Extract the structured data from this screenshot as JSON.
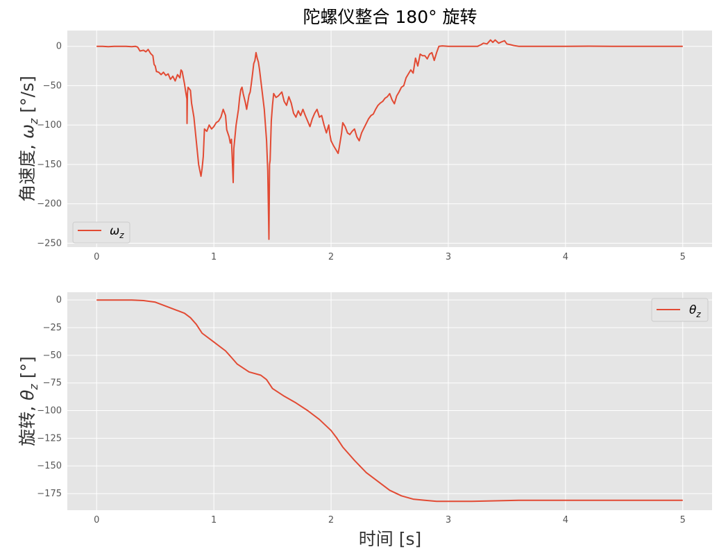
{
  "figure": {
    "title": "陀螺仪整合 180° 旋转"
  },
  "chart_data": [
    {
      "type": "line",
      "ylabel_text": "角速度, ",
      "ylabel_math": "ω",
      "ylabel_sub": "z",
      "ylabel_unit": " [°/s]",
      "xlim": [
        -0.25,
        5.25
      ],
      "ylim": [
        -255,
        20
      ],
      "x_ticks": [
        0,
        1,
        2,
        3,
        4,
        5
      ],
      "x_tick_labels": [
        "0",
        "1",
        "2",
        "3",
        "4",
        "5"
      ],
      "y_ticks": [
        0,
        -50,
        -100,
        -150,
        -200,
        -250
      ],
      "y_tick_labels": [
        "0",
        "−50",
        "−100",
        "−150",
        "−200",
        "−250"
      ],
      "grid": true,
      "legend": {
        "placement": "lower-left",
        "label": "ω",
        "sub": "z"
      },
      "series": [
        {
          "color": "#E24A33",
          "points": [
            [
              0,
              0
            ],
            [
              0.05,
              0
            ],
            [
              0.1,
              -0.5
            ],
            [
              0.15,
              0
            ],
            [
              0.2,
              0
            ],
            [
              0.25,
              0
            ],
            [
              0.3,
              -0.5
            ],
            [
              0.33,
              0
            ],
            [
              0.35,
              -1
            ],
            [
              0.37,
              -6
            ],
            [
              0.4,
              -5
            ],
            [
              0.42,
              -7
            ],
            [
              0.44,
              -4
            ],
            [
              0.46,
              -9
            ],
            [
              0.48,
              -12
            ],
            [
              0.49,
              -23
            ],
            [
              0.5,
              -25
            ],
            [
              0.51,
              -32
            ],
            [
              0.53,
              -33
            ],
            [
              0.55,
              -36
            ],
            [
              0.57,
              -33
            ],
            [
              0.59,
              -37
            ],
            [
              0.61,
              -35
            ],
            [
              0.63,
              -42
            ],
            [
              0.65,
              -38
            ],
            [
              0.67,
              -44
            ],
            [
              0.69,
              -36
            ],
            [
              0.71,
              -40
            ],
            [
              0.72,
              -30
            ],
            [
              0.73,
              -32
            ],
            [
              0.74,
              -40
            ],
            [
              0.75,
              -48
            ],
            [
              0.76,
              -58
            ],
            [
              0.77,
              -67
            ],
            [
              0.771,
              -98
            ],
            [
              0.775,
              -60
            ],
            [
              0.78,
              -52
            ],
            [
              0.8,
              -56
            ],
            [
              0.81,
              -72
            ],
            [
              0.83,
              -90
            ],
            [
              0.85,
              -120
            ],
            [
              0.87,
              -150
            ],
            [
              0.89,
              -165
            ],
            [
              0.9,
              -155
            ],
            [
              0.91,
              -140
            ],
            [
              0.92,
              -105
            ],
            [
              0.94,
              -108
            ],
            [
              0.96,
              -100
            ],
            [
              0.98,
              -105
            ],
            [
              1.0,
              -102
            ],
            [
              1.02,
              -97
            ],
            [
              1.04,
              -95
            ],
            [
              1.06,
              -90
            ],
            [
              1.08,
              -80
            ],
            [
              1.1,
              -88
            ],
            [
              1.11,
              -106
            ],
            [
              1.13,
              -115
            ],
            [
              1.14,
              -123
            ],
            [
              1.15,
              -118
            ],
            [
              1.16,
              -155
            ],
            [
              1.165,
              -173
            ],
            [
              1.17,
              -130
            ],
            [
              1.19,
              -100
            ],
            [
              1.21,
              -80
            ],
            [
              1.22,
              -65
            ],
            [
              1.23,
              -55
            ],
            [
              1.24,
              -52
            ],
            [
              1.25,
              -60
            ],
            [
              1.27,
              -72
            ],
            [
              1.28,
              -80
            ],
            [
              1.3,
              -62
            ],
            [
              1.31,
              -58
            ],
            [
              1.32,
              -47
            ],
            [
              1.33,
              -35
            ],
            [
              1.34,
              -22
            ],
            [
              1.35,
              -18
            ],
            [
              1.36,
              -8
            ],
            [
              1.37,
              -15
            ],
            [
              1.38,
              -20
            ],
            [
              1.39,
              -30
            ],
            [
              1.41,
              -55
            ],
            [
              1.43,
              -80
            ],
            [
              1.45,
              -120
            ],
            [
              1.46,
              -158
            ],
            [
              1.47,
              -245
            ],
            [
              1.475,
              -150
            ],
            [
              1.48,
              -145
            ],
            [
              1.49,
              -95
            ],
            [
              1.5,
              -75
            ],
            [
              1.51,
              -60
            ],
            [
              1.53,
              -65
            ],
            [
              1.55,
              -63
            ],
            [
              1.58,
              -58
            ],
            [
              1.6,
              -70
            ],
            [
              1.62,
              -75
            ],
            [
              1.64,
              -64
            ],
            [
              1.66,
              -72
            ],
            [
              1.68,
              -85
            ],
            [
              1.7,
              -90
            ],
            [
              1.72,
              -82
            ],
            [
              1.74,
              -88
            ],
            [
              1.76,
              -80
            ],
            [
              1.78,
              -88
            ],
            [
              1.8,
              -95
            ],
            [
              1.82,
              -102
            ],
            [
              1.84,
              -92
            ],
            [
              1.86,
              -85
            ],
            [
              1.88,
              -80
            ],
            [
              1.9,
              -90
            ],
            [
              1.92,
              -88
            ],
            [
              1.94,
              -100
            ],
            [
              1.96,
              -110
            ],
            [
              1.98,
              -100
            ],
            [
              1.99,
              -112
            ],
            [
              2.0,
              -120
            ],
            [
              2.02,
              -126
            ],
            [
              2.04,
              -131
            ],
            [
              2.06,
              -136
            ],
            [
              2.07,
              -128
            ],
            [
              2.09,
              -110
            ],
            [
              2.1,
              -97
            ],
            [
              2.12,
              -102
            ],
            [
              2.14,
              -110
            ],
            [
              2.16,
              -112
            ],
            [
              2.18,
              -108
            ],
            [
              2.2,
              -105
            ],
            [
              2.22,
              -115
            ],
            [
              2.24,
              -120
            ],
            [
              2.26,
              -110
            ],
            [
              2.28,
              -104
            ],
            [
              2.3,
              -98
            ],
            [
              2.32,
              -92
            ],
            [
              2.34,
              -88
            ],
            [
              2.36,
              -86
            ],
            [
              2.38,
              -80
            ],
            [
              2.4,
              -75
            ],
            [
              2.42,
              -72
            ],
            [
              2.44,
              -70
            ],
            [
              2.46,
              -66
            ],
            [
              2.48,
              -64
            ],
            [
              2.5,
              -60
            ],
            [
              2.52,
              -68
            ],
            [
              2.54,
              -73
            ],
            [
              2.56,
              -63
            ],
            [
              2.58,
              -58
            ],
            [
              2.6,
              -52
            ],
            [
              2.62,
              -50
            ],
            [
              2.64,
              -40
            ],
            [
              2.66,
              -35
            ],
            [
              2.68,
              -30
            ],
            [
              2.7,
              -34
            ],
            [
              2.72,
              -15
            ],
            [
              2.74,
              -25
            ],
            [
              2.76,
              -10
            ],
            [
              2.78,
              -12
            ],
            [
              2.8,
              -12
            ],
            [
              2.82,
              -16
            ],
            [
              2.84,
              -10
            ],
            [
              2.86,
              -8
            ],
            [
              2.88,
              -18
            ],
            [
              2.9,
              -8
            ],
            [
              2.92,
              0
            ],
            [
              2.95,
              0.5
            ],
            [
              3.0,
              0
            ],
            [
              3.1,
              0
            ],
            [
              3.2,
              0
            ],
            [
              3.25,
              0
            ],
            [
              3.28,
              2
            ],
            [
              3.3,
              4
            ],
            [
              3.33,
              3
            ],
            [
              3.36,
              8
            ],
            [
              3.38,
              5
            ],
            [
              3.4,
              8
            ],
            [
              3.43,
              4
            ],
            [
              3.46,
              6
            ],
            [
              3.48,
              7
            ],
            [
              3.5,
              3
            ],
            [
              3.53,
              2
            ],
            [
              3.56,
              1
            ],
            [
              3.6,
              0
            ],
            [
              3.8,
              0
            ],
            [
              4.0,
              0
            ],
            [
              4.2,
              0.2
            ],
            [
              4.4,
              0
            ],
            [
              4.6,
              0
            ],
            [
              4.8,
              0
            ],
            [
              5.0,
              0
            ]
          ]
        }
      ]
    },
    {
      "type": "line",
      "ylabel_text": "旋转, ",
      "ylabel_math": "θ",
      "ylabel_sub": "z",
      "ylabel_unit": " [°]",
      "xlabel": "时间 [s]",
      "xlim": [
        -0.25,
        5.25
      ],
      "ylim": [
        -190,
        7
      ],
      "x_ticks": [
        0,
        1,
        2,
        3,
        4,
        5
      ],
      "x_tick_labels": [
        "0",
        "1",
        "2",
        "3",
        "4",
        "5"
      ],
      "y_ticks": [
        0,
        -25,
        -50,
        -75,
        -100,
        -125,
        -150,
        -175
      ],
      "y_tick_labels": [
        "0",
        "−25",
        "−50",
        "−75",
        "−100",
        "−125",
        "−150",
        "−175"
      ],
      "grid": true,
      "legend": {
        "placement": "upper-right",
        "label": "θ",
        "sub": "z"
      },
      "series": [
        {
          "color": "#E24A33",
          "points": [
            [
              0,
              0
            ],
            [
              0.3,
              0
            ],
            [
              0.4,
              -0.5
            ],
            [
              0.5,
              -2
            ],
            [
              0.6,
              -6
            ],
            [
              0.7,
              -10
            ],
            [
              0.75,
              -12
            ],
            [
              0.8,
              -16
            ],
            [
              0.85,
              -22
            ],
            [
              0.9,
              -30
            ],
            [
              1.0,
              -38
            ],
            [
              1.1,
              -46
            ],
            [
              1.15,
              -52
            ],
            [
              1.2,
              -58
            ],
            [
              1.3,
              -65
            ],
            [
              1.4,
              -68
            ],
            [
              1.45,
              -72
            ],
            [
              1.5,
              -80
            ],
            [
              1.6,
              -87
            ],
            [
              1.7,
              -93
            ],
            [
              1.8,
              -100
            ],
            [
              1.9,
              -108
            ],
            [
              2.0,
              -118
            ],
            [
              2.05,
              -125
            ],
            [
              2.1,
              -133
            ],
            [
              2.2,
              -145
            ],
            [
              2.3,
              -156
            ],
            [
              2.4,
              -164
            ],
            [
              2.5,
              -172
            ],
            [
              2.6,
              -177
            ],
            [
              2.7,
              -180
            ],
            [
              2.8,
              -181
            ],
            [
              2.9,
              -182
            ],
            [
              3.0,
              -182
            ],
            [
              3.2,
              -182
            ],
            [
              3.4,
              -181.5
            ],
            [
              3.6,
              -181
            ],
            [
              3.8,
              -181
            ],
            [
              4.0,
              -181
            ],
            [
              4.5,
              -181
            ],
            [
              5.0,
              -181
            ]
          ]
        }
      ]
    }
  ]
}
